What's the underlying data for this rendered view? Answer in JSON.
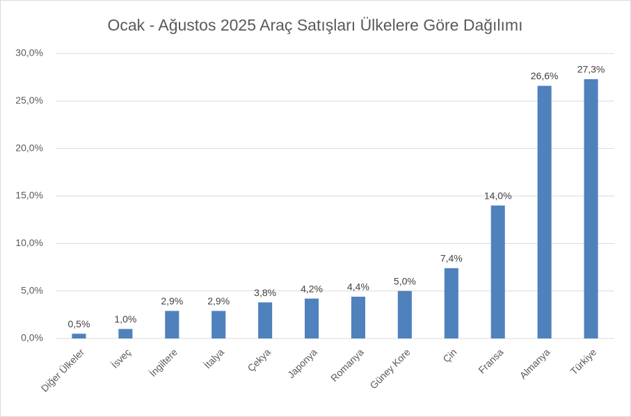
{
  "chart_data": {
    "type": "bar",
    "title": "Ocak - Ağustos 2025 Araç Satışları Ülkelere Göre Dağılımı",
    "categories": [
      "Diğer Ülkeler",
      "İsveç",
      "İngiltere",
      "İtalya",
      "Çekya",
      "Japonya",
      "Romanya",
      "Güney Kore",
      "Çin",
      "Fransa",
      "Almanya",
      "Türkiye"
    ],
    "values": [
      0.5,
      1.0,
      2.9,
      2.9,
      3.8,
      4.2,
      4.4,
      5.0,
      7.4,
      14.0,
      26.6,
      27.3
    ],
    "value_labels": [
      "0,5%",
      "1,0%",
      "2,9%",
      "2,9%",
      "3,8%",
      "4,2%",
      "4,4%",
      "5,0%",
      "7,4%",
      "14,0%",
      "26,6%",
      "27,3%"
    ],
    "color": "#4f81bd",
    "ylim": [
      0,
      30
    ],
    "yticks": [
      {
        "value": 0,
        "label": "0,0%"
      },
      {
        "value": 5,
        "label": "5,0%"
      },
      {
        "value": 10,
        "label": "10,0%"
      },
      {
        "value": 15,
        "label": "15,0%"
      },
      {
        "value": 20,
        "label": "20,0%"
      },
      {
        "value": 25,
        "label": "25,0%"
      },
      {
        "value": 30,
        "label": "30,0%"
      }
    ],
    "grid": true
  }
}
